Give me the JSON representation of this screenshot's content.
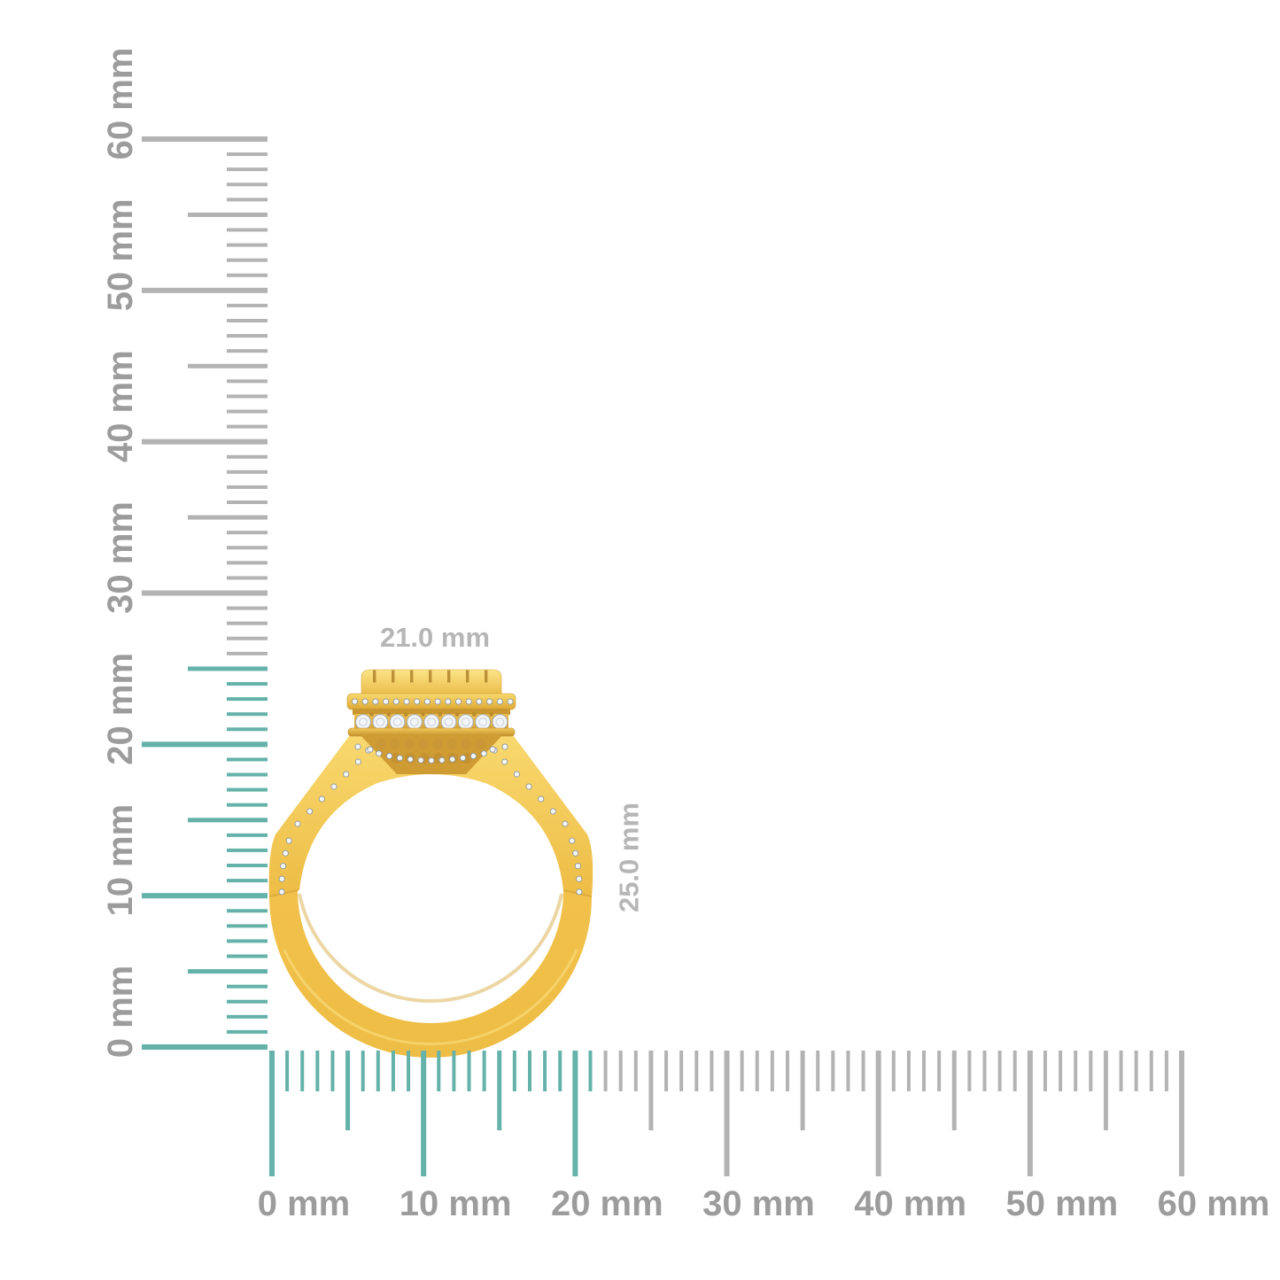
{
  "image_type": "jewelry-product-dimension-diagram",
  "background": "#ffffff",
  "dimensions": {
    "width_label": "21.0 mm",
    "height_label": "25.0 mm",
    "width_mm": 21.0,
    "height_mm": 25.0
  },
  "rulers": {
    "unit": "mm",
    "range_mm": [
      0,
      60
    ],
    "minor_step_mm": 1,
    "medium_step_mm": 5,
    "major_step_mm": 10,
    "vertical": {
      "labels": [
        "0 mm",
        "10 mm",
        "20 mm",
        "30 mm",
        "40 mm",
        "50 mm",
        "60 mm"
      ],
      "highlighted_extent_mm": 25
    },
    "horizontal": {
      "labels": [
        "0 mm",
        "10 mm",
        "20 mm",
        "30 mm",
        "40 mm",
        "50 mm",
        "60 mm"
      ],
      "highlighted_extent_mm": 21
    }
  },
  "colors": {
    "tick_gray": "#b3b3b3",
    "tick_teal": "#64b2a9",
    "ruler_label_gray": "#9c9c9c",
    "dimension_label_gray": "#b6b6b6",
    "gold_light": "#fbdf7d",
    "gold": "#f2c14b",
    "gold_mid": "#e8b644",
    "gold_dark": "#cf9b33",
    "gold_deep": "#b8882b",
    "diamond_white": "#f3f6f9",
    "diamond_edge": "#a3adb6"
  },
  "subject": {
    "description": "Yellow gold diamond halo cluster ring, side profile view"
  }
}
